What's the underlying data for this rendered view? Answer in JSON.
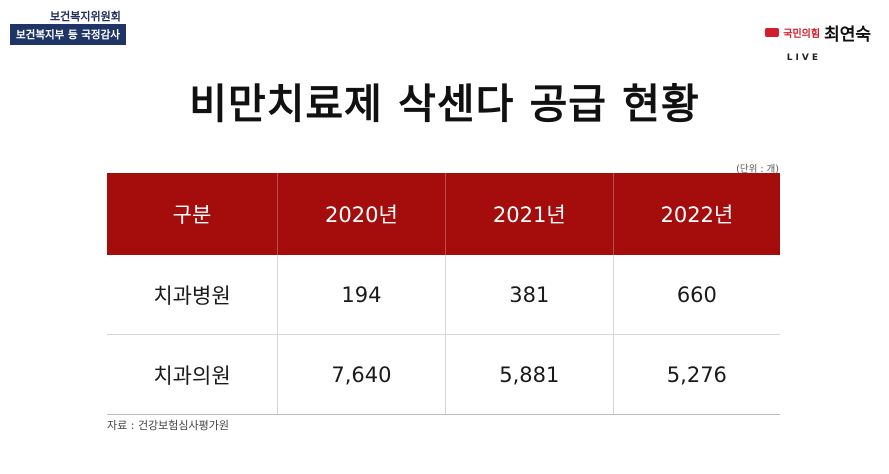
{
  "header": {
    "committee": "보건복지위원회",
    "session": "보건복지부 등 국정감사"
  },
  "brand": {
    "party": "국민의힘",
    "name": "최연숙",
    "live": "LIVE",
    "accent": "#d41d2a"
  },
  "title": "비만치료제 삭센다 공급 현황",
  "unit": "(단위 : 개)",
  "table": {
    "columns": [
      "구분",
      "2020년",
      "2021년",
      "2022년"
    ],
    "rows": [
      {
        "label": "치과병원",
        "values": [
          "194",
          "381",
          "660"
        ]
      },
      {
        "label": "치과의원",
        "values": [
          "7,640",
          "5,881",
          "5,276"
        ]
      }
    ],
    "header_color": "#a50c0c"
  },
  "source": "자료 : 건강보험심사평가원"
}
